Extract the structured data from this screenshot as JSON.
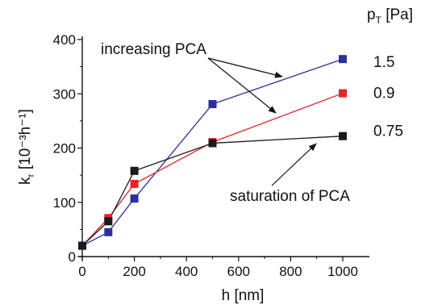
{
  "chart_data": {
    "type": "line",
    "xlabel": "h [nm]",
    "ylabel_main": "k",
    "ylabel_sub": "r",
    "ylabel_units": " [10⁻³h⁻¹]",
    "xlim": [
      0,
      1000
    ],
    "ylim": [
      0,
      400
    ],
    "xticks": [
      0,
      200,
      400,
      600,
      800,
      1000
    ],
    "yticks": [
      0,
      100,
      200,
      300,
      400
    ],
    "grid": false,
    "legend": {
      "title_main": "p",
      "title_sub": "T",
      "title_units": " [Pa]",
      "placement": "right"
    },
    "series": [
      {
        "name": "1.5",
        "color": "#2a2f9a",
        "x": [
          0,
          100,
          200,
          500,
          1000
        ],
        "y": [
          20,
          45,
          107,
          281,
          364
        ]
      },
      {
        "name": "0.9",
        "color": "#e8232b",
        "x": [
          0,
          100,
          200,
          500,
          1000
        ],
        "y": [
          20,
          71,
          134,
          211,
          301
        ]
      },
      {
        "name": "0.75",
        "color": "#1a1a1a",
        "x": [
          0,
          100,
          200,
          500,
          1000
        ],
        "y": [
          20,
          65,
          158,
          209,
          222
        ]
      }
    ],
    "annotations": [
      {
        "text": "increasing PCA"
      },
      {
        "text": "saturation of PCA"
      }
    ]
  }
}
